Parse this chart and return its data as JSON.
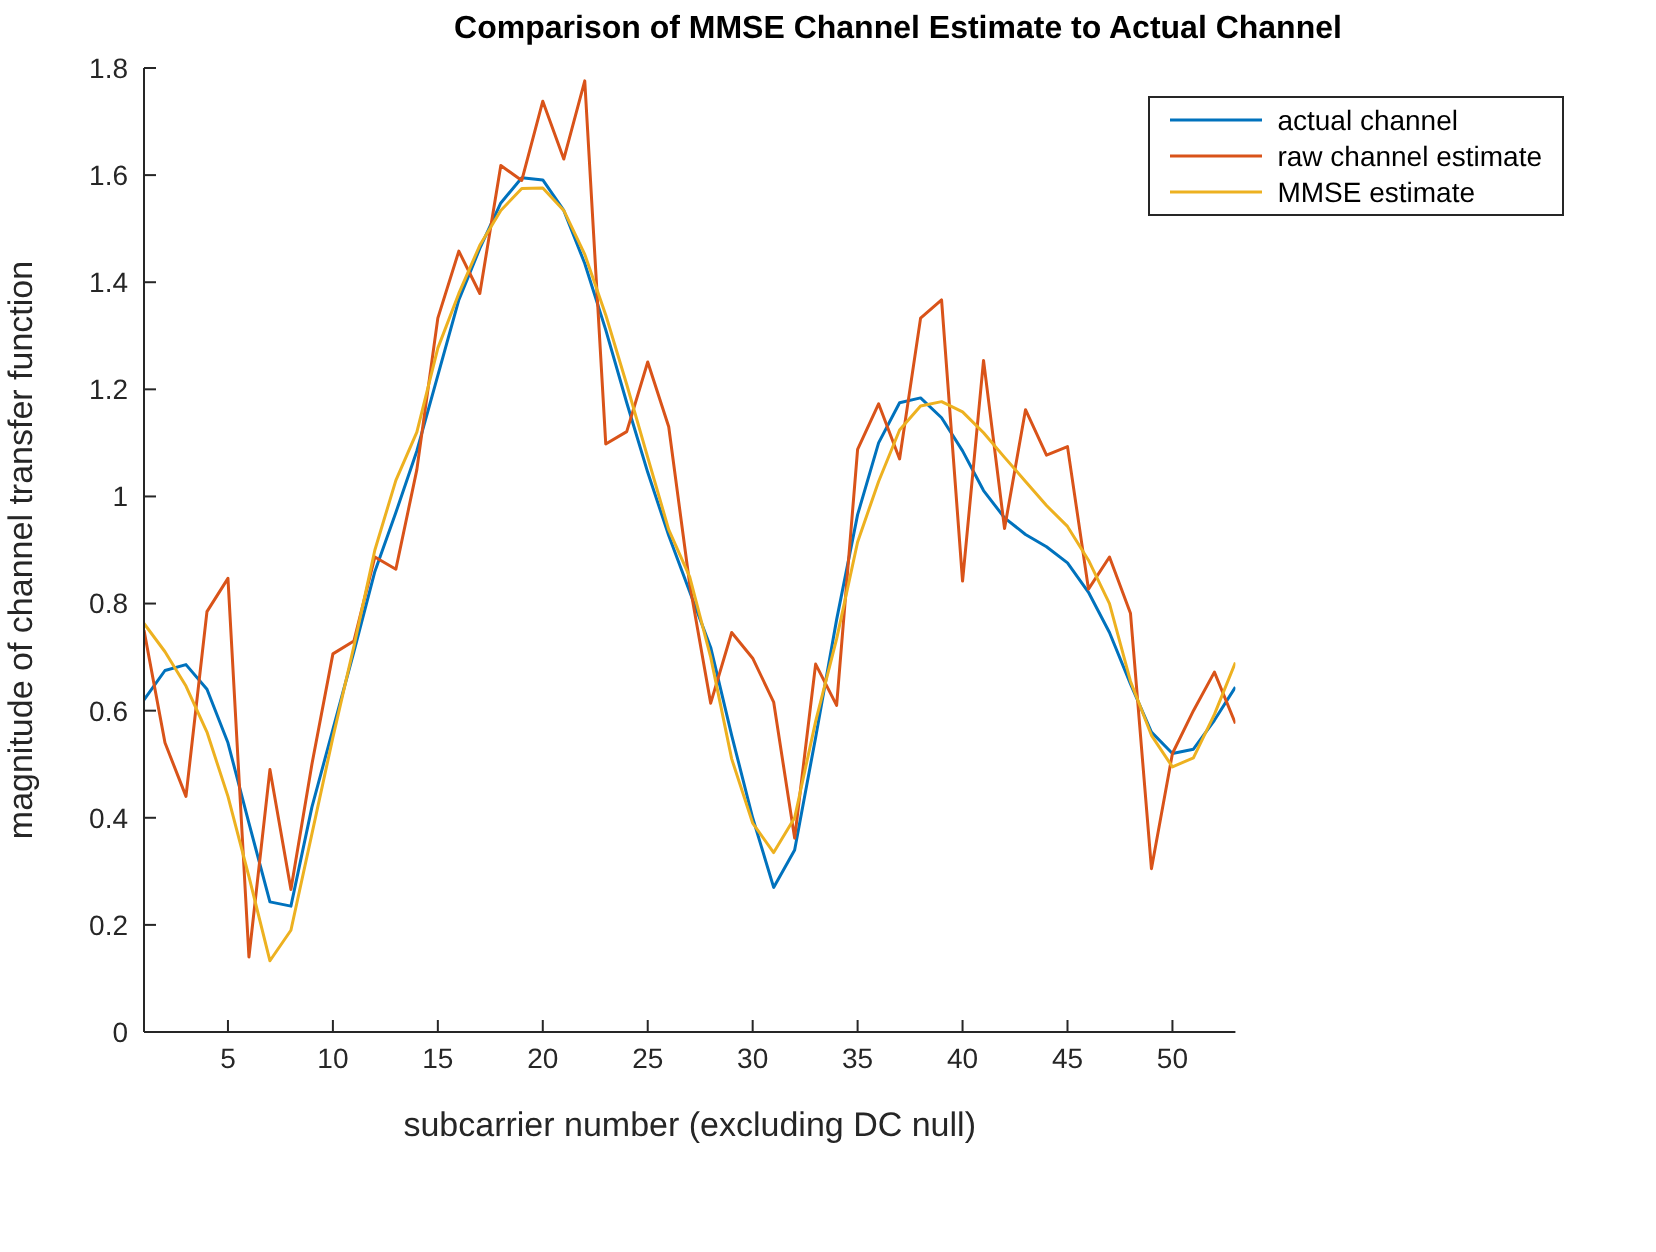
{
  "chart_data": {
    "type": "line",
    "title": "Comparison of MMSE Channel Estimate to Actual Channel",
    "xlabel": "subcarrier number (excluding DC null)",
    "ylabel": "magnitude of channel transfer function",
    "x": [
      1,
      2,
      3,
      4,
      5,
      6,
      7,
      8,
      9,
      10,
      11,
      12,
      13,
      14,
      15,
      16,
      17,
      18,
      19,
      20,
      21,
      22,
      23,
      24,
      25,
      26,
      27,
      28,
      29,
      30,
      31,
      32,
      33,
      34,
      35,
      36,
      37,
      38,
      39,
      40,
      41,
      42,
      43,
      44,
      45,
      46,
      47,
      48,
      49,
      50,
      51,
      52,
      53
    ],
    "series": [
      {
        "name": "actual channel",
        "color": "#0072bd",
        "values": [
          0.62,
          0.675,
          0.686,
          0.64,
          0.54,
          0.39,
          0.243,
          0.235,
          0.42,
          0.565,
          0.71,
          0.86,
          0.97,
          1.085,
          1.226,
          1.367,
          1.463,
          1.548,
          1.595,
          1.591,
          1.534,
          1.435,
          1.311,
          1.175,
          1.045,
          0.927,
          0.822,
          0.718,
          0.554,
          0.4,
          0.27,
          0.34,
          0.55,
          0.77,
          0.966,
          1.1,
          1.175,
          1.184,
          1.147,
          1.085,
          1.011,
          0.96,
          0.929,
          0.906,
          0.876,
          0.821,
          0.746,
          0.65,
          0.56,
          0.52,
          0.528,
          0.582,
          0.644
        ]
      },
      {
        "name": "raw channel estimate",
        "color": "#d95319",
        "values": [
          0.75,
          0.54,
          0.44,
          0.785,
          0.847,
          0.14,
          0.49,
          0.266,
          0.5,
          0.706,
          0.73,
          0.887,
          0.864,
          1.05,
          1.333,
          1.458,
          1.379,
          1.618,
          1.59,
          1.738,
          1.63,
          1.776,
          1.098,
          1.121,
          1.251,
          1.13,
          0.836,
          0.614,
          0.746,
          0.698,
          0.616,
          0.362,
          0.687,
          0.61,
          1.088,
          1.173,
          1.07,
          1.333,
          1.367,
          0.842,
          1.254,
          0.94,
          1.162,
          1.077,
          1.093,
          0.827,
          0.887,
          0.782,
          0.305,
          0.52,
          0.6,
          0.672,
          0.576
        ]
      },
      {
        "name": "MMSE estimate",
        "color": "#edb120",
        "values": [
          0.763,
          0.71,
          0.646,
          0.56,
          0.44,
          0.29,
          0.133,
          0.19,
          0.37,
          0.55,
          0.72,
          0.9,
          1.03,
          1.12,
          1.277,
          1.379,
          1.469,
          1.534,
          1.575,
          1.576,
          1.534,
          1.452,
          1.339,
          1.209,
          1.073,
          0.938,
          0.85,
          0.7,
          0.51,
          0.39,
          0.335,
          0.4,
          0.58,
          0.734,
          0.915,
          1.028,
          1.124,
          1.169,
          1.177,
          1.158,
          1.119,
          1.073,
          1.028,
          0.983,
          0.944,
          0.881,
          0.8,
          0.655,
          0.554,
          0.495,
          0.512,
          0.593,
          0.69
        ]
      }
    ],
    "xlim": [
      1,
      53
    ],
    "xticks": [
      5,
      10,
      15,
      20,
      25,
      30,
      35,
      40,
      45,
      50
    ],
    "ylim": [
      0,
      1.8
    ],
    "yticks": [
      0,
      0.2,
      0.4,
      0.6,
      0.8,
      1,
      1.2,
      1.4,
      1.6,
      1.8
    ],
    "grid": false,
    "legend": "top right",
    "marker": "none",
    "line_style": "solid"
  }
}
